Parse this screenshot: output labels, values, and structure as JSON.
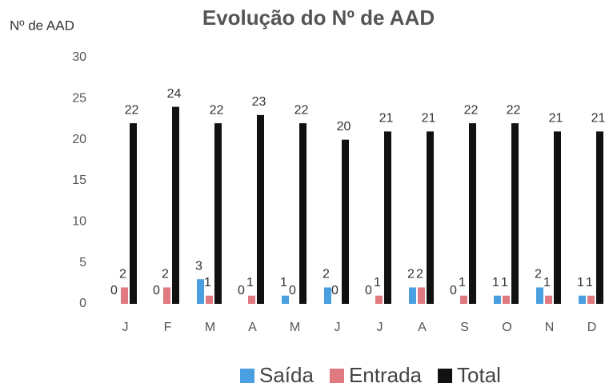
{
  "chart_data": {
    "type": "bar",
    "title": "Evolução do Nº de AAD",
    "y_label": "Nº de AAD",
    "categories": [
      "J",
      "F",
      "M",
      "A",
      "M",
      "J",
      "J",
      "A",
      "S",
      "O",
      "N",
      "D"
    ],
    "series": [
      {
        "name": "Saída",
        "color": "#4a9fe0",
        "values": [
          0,
          0,
          3,
          0,
          1,
          2,
          0,
          2,
          0,
          1,
          2,
          1
        ]
      },
      {
        "name": "Entrada",
        "color": "#e07a80",
        "values": [
          2,
          2,
          1,
          1,
          0,
          0,
          1,
          2,
          1,
          1,
          1,
          1
        ]
      },
      {
        "name": "Total",
        "color": "#111111",
        "values": [
          22,
          24,
          22,
          23,
          22,
          20,
          21,
          21,
          22,
          22,
          21,
          21
        ]
      }
    ],
    "ylim": [
      0,
      30
    ],
    "yticks": [
      0,
      5,
      10,
      15,
      20,
      25,
      30
    ],
    "grid": false,
    "legend": "bottom"
  }
}
